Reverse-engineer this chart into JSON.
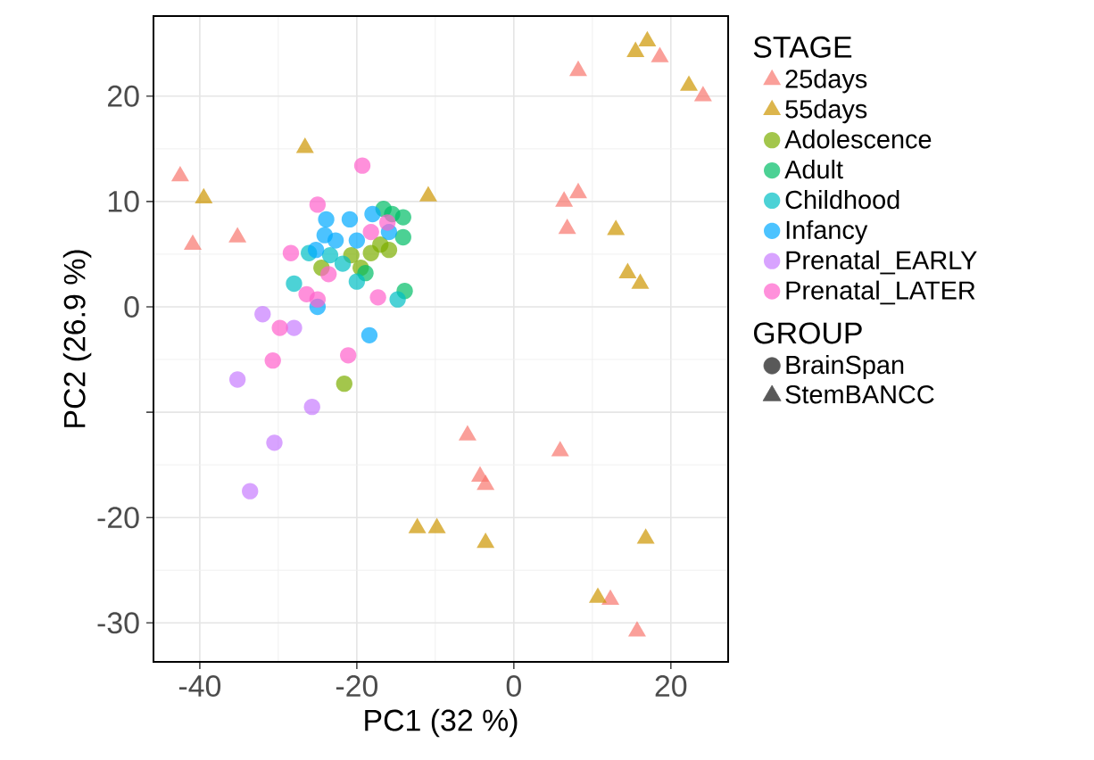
{
  "chart_data": {
    "type": "scatter",
    "xlabel": "PC1 (32 %)",
    "ylabel": "PC2 (26.9 %)",
    "legend_title": [
      "STAGE",
      "GROUP"
    ],
    "legend": "right",
    "grid": true,
    "xlim": [
      -45.9,
      27.3
    ],
    "ylim": [
      -33.7,
      27.6
    ],
    "xticks": [
      -40,
      -20,
      0,
      20
    ],
    "yticks": [
      -30,
      -20,
      {
        "value": -10,
        "label": null
      },
      0,
      10,
      20
    ],
    "series": [
      {
        "name": "25days",
        "color": "#F8766D",
        "marker": "triangle",
        "x": [
          -42.5,
          -40.9,
          -35.2,
          8.2,
          18.6,
          24.1,
          6.4,
          8.2,
          6.8,
          -5.9,
          5.9,
          -4.3,
          -3.6,
          12.3,
          15.7
        ],
        "values": [
          12.4,
          5.9,
          6.6,
          22.4,
          23.7,
          20.0,
          10.0,
          10.8,
          7.4,
          -12.2,
          -13.7,
          -16.1,
          -16.9,
          -27.8,
          -30.8
        ]
      },
      {
        "name": "55days",
        "color": "#CD9600",
        "marker": "triangle",
        "x": [
          17.0,
          15.5,
          22.3,
          13.0,
          14.5,
          16.1,
          -10.9,
          -26.6,
          -39.5,
          -12.3,
          -9.8,
          -3.6,
          16.8,
          10.7
        ],
        "values": [
          25.2,
          24.2,
          21.0,
          7.3,
          3.2,
          2.2,
          10.5,
          15.1,
          10.3,
          -21.0,
          -21.0,
          -22.4,
          -22.0,
          -27.6
        ]
      },
      {
        "name": "Adolescence",
        "color": "#7CAE00",
        "marker": "circle",
        "x": [
          -21.6,
          -19.5,
          -18.2,
          -17.0,
          -20.7,
          -15.9,
          -24.5
        ],
        "values": [
          -7.3,
          3.7,
          5.1,
          5.9,
          4.9,
          5.4,
          3.7
        ]
      },
      {
        "name": "Adult",
        "color": "#00BE67",
        "marker": "circle",
        "x": [
          -13.9,
          -14.1,
          -16.6,
          -14.1,
          -18.9,
          -15.5
        ],
        "values": [
          1.5,
          6.6,
          9.3,
          8.5,
          3.2,
          8.8
        ]
      },
      {
        "name": "Childhood",
        "color": "#00BFC4",
        "marker": "circle",
        "x": [
          -28.0,
          -14.8,
          -26.1,
          -23.4,
          -20.0,
          -21.8
        ],
        "values": [
          2.2,
          0.7,
          5.1,
          4.9,
          2.4,
          4.1
        ]
      },
      {
        "name": "Infancy",
        "color": "#00A9FF",
        "marker": "circle",
        "x": [
          -18.4,
          -25.0,
          -23.9,
          -24.1,
          -20.9,
          -22.7,
          -25.2,
          -18.0,
          -20.0,
          -15.9
        ],
        "values": [
          -2.7,
          0.0,
          8.3,
          6.8,
          8.3,
          6.3,
          5.4,
          8.8,
          6.3,
          7.1
        ]
      },
      {
        "name": "Prenatal_EARLY",
        "color": "#C77CFF",
        "marker": "circle",
        "x": [
          -35.2,
          -25.7,
          -30.5,
          -33.6,
          -32.0,
          -28.0
        ],
        "values": [
          -6.9,
          -9.5,
          -12.9,
          -17.5,
          -0.7,
          -2.0
        ]
      },
      {
        "name": "Prenatal_LATER",
        "color": "#FF61CC",
        "marker": "circle",
        "x": [
          -30.7,
          -21.1,
          -19.3,
          -25.0,
          -28.4,
          -26.4,
          -29.8,
          -17.3,
          -23.6,
          -18.2,
          -16.1,
          -25.0
        ],
        "values": [
          -5.1,
          -4.6,
          13.4,
          9.7,
          5.1,
          1.2,
          -2.0,
          0.9,
          3.1,
          7.1,
          8.0,
          0.7
        ]
      },
      {
        "name": "BrainSpan",
        "color": "#595959",
        "marker": "circle"
      },
      {
        "name": "StemBANCC",
        "color": "#595959",
        "marker": "triangle"
      }
    ]
  }
}
